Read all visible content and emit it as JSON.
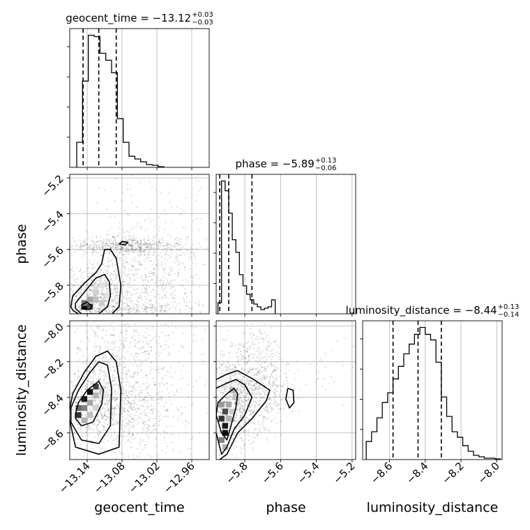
{
  "chart_data": {
    "type": "corner",
    "parameters": [
      {
        "name": "geocent_time",
        "axis_label": "geocent_time",
        "title": {
          "prefix": "geocent_time = ",
          "median": "−13.12",
          "upper": "+0.03",
          "lower": "−0.03"
        },
        "range": [
          -13.17,
          -12.93
        ],
        "ticks": [
          -13.14,
          -13.08,
          -13.02,
          -12.96
        ],
        "tick_labels": [
          "−13.14",
          "−13.08",
          "−13.02",
          "−12.96"
        ],
        "quantiles": [
          -13.147,
          -13.12,
          -13.09
        ],
        "hist": {
          "edges": [
            -13.158,
            -13.148,
            -13.138,
            -13.128,
            -13.118,
            -13.108,
            -13.098,
            -13.088,
            -13.078,
            -13.068,
            -13.058,
            -13.048,
            -13.038,
            -13.028,
            -13.018,
            -13.008
          ],
          "counts": [
            0.18,
            0.62,
            0.95,
            0.94,
            0.82,
            0.77,
            0.68,
            0.35,
            0.18,
            0.08,
            0.06,
            0.04,
            0.02,
            0.015,
            0.005
          ]
        }
      },
      {
        "name": "phase",
        "axis_label": "phase",
        "title": {
          "prefix": "phase = ",
          "median": "−5.89",
          "upper": "+0.13",
          "lower": "−0.06"
        },
        "range": [
          -5.96,
          -5.18
        ],
        "ticks": [
          -5.8,
          -5.6,
          -5.4,
          -5.2
        ],
        "tick_labels": [
          "−5.8",
          "−5.6",
          "−5.4",
          "−5.2"
        ],
        "quantiles": [
          -5.94,
          -5.89,
          -5.76
        ],
        "hist": {
          "edges": [
            -5.95,
            -5.93,
            -5.91,
            -5.89,
            -5.87,
            -5.85,
            -5.83,
            -5.81,
            -5.79,
            -5.77,
            -5.75,
            -5.73,
            -5.71,
            -5.69,
            -5.67,
            -5.65,
            -5.63
          ],
          "counts": [
            0.08,
            0.95,
            0.88,
            0.72,
            0.53,
            0.44,
            0.28,
            0.2,
            0.14,
            0.1,
            0.07,
            0.05,
            0.03,
            0.04,
            0.05,
            0.1
          ]
        }
      },
      {
        "name": "luminosity_distance",
        "axis_label": "luminosity_distance",
        "title": {
          "prefix": "luminosity_distance = ",
          "median": "−8.44",
          "upper": "+0.13",
          "lower": "−0.14"
        },
        "range": [
          -8.75,
          -7.97
        ],
        "ticks": [
          -8.6,
          -8.4,
          -8.2,
          -8.0
        ],
        "tick_labels": [
          "−8.6",
          "−8.4",
          "−8.2",
          "−8.0"
        ],
        "quantiles": [
          -8.58,
          -8.44,
          -8.31
        ],
        "hist": {
          "edges": [
            -8.73,
            -8.7,
            -8.67,
            -8.64,
            -8.61,
            -8.58,
            -8.55,
            -8.52,
            -8.49,
            -8.46,
            -8.43,
            -8.4,
            -8.37,
            -8.34,
            -8.31,
            -8.28,
            -8.25,
            -8.22,
            -8.19,
            -8.16,
            -8.13,
            -8.1,
            -8.07,
            -8.04,
            -8.01,
            -7.98
          ],
          "counts": [
            0.13,
            0.2,
            0.3,
            0.41,
            0.48,
            0.58,
            0.67,
            0.76,
            0.83,
            0.9,
            0.95,
            0.9,
            0.86,
            0.7,
            0.45,
            0.31,
            0.2,
            0.16,
            0.1,
            0.06,
            0.03,
            0.02,
            0.01,
            0.01,
            0.005
          ]
        }
      }
    ],
    "pairs": [
      {
        "x": "geocent_time",
        "y": "phase",
        "cells": [
          [
            -13.145,
            -5.92,
            0.95
          ],
          [
            -13.135,
            -5.92,
            0.7
          ],
          [
            -13.145,
            -5.9,
            0.55
          ],
          [
            -13.135,
            -5.88,
            0.35
          ],
          [
            -13.125,
            -5.88,
            0.25
          ],
          [
            -13.115,
            -5.9,
            0.2
          ],
          [
            -13.125,
            -5.84,
            0.18
          ],
          [
            -13.115,
            -5.8,
            0.12
          ],
          [
            -13.105,
            -5.86,
            0.12
          ]
        ],
        "contours": [
          [
            [
              -13.16,
              -5.93
            ],
            [
              -13.15,
              -5.96
            ],
            [
              -13.12,
              -5.96
            ],
            [
              -13.105,
              -5.92
            ],
            [
              -13.1,
              -5.86
            ],
            [
              -13.102,
              -5.78
            ],
            [
              -13.11,
              -5.74
            ],
            [
              -13.125,
              -5.76
            ],
            [
              -13.145,
              -5.84
            ],
            [
              -13.16,
              -5.9
            ],
            [
              -13.16,
              -5.93
            ]
          ],
          [
            [
              -13.165,
              -5.94
            ],
            [
              -13.15,
              -5.97
            ],
            [
              -13.1,
              -5.97
            ],
            [
              -13.085,
              -5.92
            ],
            [
              -13.082,
              -5.8
            ],
            [
              -13.09,
              -5.65
            ],
            [
              -13.1,
              -5.6
            ],
            [
              -13.11,
              -5.6
            ],
            [
              -13.115,
              -5.68
            ],
            [
              -13.125,
              -5.73
            ],
            [
              -13.145,
              -5.79
            ],
            [
              -13.165,
              -5.86
            ],
            [
              -13.168,
              -5.92
            ],
            [
              -13.165,
              -5.94
            ]
          ],
          [
            [
              -13.085,
              -5.57
            ],
            [
              -13.08,
              -5.555
            ],
            [
              -13.07,
              -5.56
            ],
            [
              -13.075,
              -5.575
            ],
            [
              -13.085,
              -5.57
            ]
          ],
          [
            [
              -13.15,
              -5.91
            ],
            [
              -13.145,
              -5.935
            ],
            [
              -13.135,
              -5.935
            ],
            [
              -13.132,
              -5.915
            ],
            [
              -13.14,
              -5.895
            ],
            [
              -13.15,
              -5.91
            ]
          ]
        ],
        "scatter": {
          "seed": 7,
          "blobs": [
            [
              -13.12,
              -5.85,
              0.03,
              0.08,
              650
            ],
            [
              -13.07,
              -5.58,
              0.05,
              0.025,
              500
            ],
            [
              -13.03,
              -5.72,
              0.05,
              0.13,
              500
            ],
            [
              -13.07,
              -5.93,
              0.07,
              0.02,
              300
            ],
            [
              -13.02,
              -5.4,
              0.06,
              0.17,
              90
            ]
          ]
        }
      },
      {
        "x": "geocent_time",
        "y": "luminosity_distance",
        "cells": [
          [
            -13.125,
            -8.34,
            0.75
          ],
          [
            -13.135,
            -8.37,
            0.95
          ],
          [
            -13.145,
            -8.41,
            0.9
          ],
          [
            -13.155,
            -8.46,
            0.6
          ],
          [
            -13.155,
            -8.5,
            0.8
          ],
          [
            -13.145,
            -8.46,
            0.5
          ],
          [
            -13.135,
            -8.43,
            0.35
          ],
          [
            -13.125,
            -8.39,
            0.3
          ],
          [
            -13.145,
            -8.53,
            0.3
          ],
          [
            -13.135,
            -8.5,
            0.25
          ],
          [
            -13.115,
            -8.36,
            0.2
          ],
          [
            -13.125,
            -8.46,
            0.18
          ]
        ],
        "contours": [
          [
            [
              -13.16,
              -8.52
            ],
            [
              -13.15,
              -8.56
            ],
            [
              -13.13,
              -8.54
            ],
            [
              -13.115,
              -8.44
            ],
            [
              -13.112,
              -8.36
            ],
            [
              -13.12,
              -8.31
            ],
            [
              -13.14,
              -8.36
            ],
            [
              -13.155,
              -8.43
            ],
            [
              -13.16,
              -8.49
            ],
            [
              -13.16,
              -8.52
            ]
          ],
          [
            [
              -13.168,
              -8.54
            ],
            [
              -13.15,
              -8.64
            ],
            [
              -13.12,
              -8.66
            ],
            [
              -13.1,
              -8.56
            ],
            [
              -13.098,
              -8.35
            ],
            [
              -13.105,
              -8.22
            ],
            [
              -13.12,
              -8.2
            ],
            [
              -13.135,
              -8.26
            ],
            [
              -13.155,
              -8.36
            ],
            [
              -13.168,
              -8.46
            ],
            [
              -13.168,
              -8.54
            ]
          ],
          [
            [
              -13.172,
              -8.5
            ],
            [
              -13.16,
              -8.68
            ],
            [
              -13.12,
              -8.72
            ],
            [
              -13.085,
              -8.68
            ],
            [
              -13.082,
              -8.36
            ],
            [
              -13.09,
              -8.2
            ],
            [
              -13.105,
              -8.14
            ],
            [
              -13.125,
              -8.17
            ],
            [
              -13.145,
              -8.26
            ],
            [
              -13.165,
              -8.38
            ],
            [
              -13.172,
              -8.5
            ]
          ]
        ],
        "scatter": {
          "seed": 11,
          "blobs": [
            [
              -13.12,
              -8.42,
              0.035,
              0.13,
              800
            ],
            [
              -13.05,
              -8.45,
              0.05,
              0.18,
              600
            ],
            [
              -13.09,
              -8.12,
              0.04,
              0.1,
              200
            ],
            [
              -13.02,
              -8.05,
              0.04,
              0.08,
              80
            ]
          ]
        }
      },
      {
        "x": "phase",
        "y": "luminosity_distance",
        "cells": [
          [
            -5.93,
            -8.44,
            0.4
          ],
          [
            -5.91,
            -8.48,
            0.7
          ],
          [
            -5.93,
            -8.52,
            0.8
          ],
          [
            -5.91,
            -8.56,
            0.9
          ],
          [
            -5.91,
            -8.6,
            0.95
          ],
          [
            -5.93,
            -8.64,
            0.5
          ],
          [
            -5.89,
            -8.44,
            0.35
          ],
          [
            -5.87,
            -8.36,
            0.3
          ],
          [
            -5.85,
            -8.4,
            0.25
          ],
          [
            -5.89,
            -8.52,
            0.3
          ],
          [
            -5.87,
            -8.48,
            0.2
          ],
          [
            -5.91,
            -8.68,
            0.3
          ]
        ],
        "contours": [
          [
            [
              -5.96,
              -8.5
            ],
            [
              -5.93,
              -8.6
            ],
            [
              -5.9,
              -8.64
            ],
            [
              -5.88,
              -8.57
            ],
            [
              -5.85,
              -8.46
            ],
            [
              -5.84,
              -8.38
            ],
            [
              -5.86,
              -8.35
            ],
            [
              -5.9,
              -8.38
            ],
            [
              -5.95,
              -8.43
            ],
            [
              -5.96,
              -8.5
            ]
          ],
          [
            [
              -5.96,
              -8.35
            ],
            [
              -5.9,
              -8.32
            ],
            [
              -5.85,
              -8.3
            ],
            [
              -5.8,
              -8.33
            ],
            [
              -5.76,
              -8.4
            ],
            [
              -5.8,
              -8.5
            ],
            [
              -5.86,
              -8.58
            ],
            [
              -5.9,
              -8.68
            ],
            [
              -5.93,
              -8.72
            ],
            [
              -5.96,
              -8.6
            ]
          ],
          [
            [
              -5.96,
              -8.3
            ],
            [
              -5.9,
              -8.27
            ],
            [
              -5.84,
              -8.25
            ],
            [
              -5.75,
              -8.3
            ],
            [
              -5.66,
              -8.36
            ],
            [
              -5.68,
              -8.42
            ],
            [
              -5.76,
              -8.52
            ],
            [
              -5.84,
              -8.6
            ],
            [
              -5.9,
              -8.72
            ],
            [
              -5.94,
              -8.75
            ]
          ],
          [
            [
              -5.56,
              -8.35
            ],
            [
              -5.53,
              -8.36
            ],
            [
              -5.525,
              -8.43
            ],
            [
              -5.55,
              -8.46
            ],
            [
              -5.57,
              -8.41
            ],
            [
              -5.56,
              -8.35
            ]
          ]
        ],
        "scatter": {
          "seed": 19,
          "blobs": [
            [
              -5.85,
              -8.42,
              0.07,
              0.13,
              900
            ],
            [
              -5.66,
              -8.36,
              0.05,
              0.1,
              250
            ],
            [
              -5.75,
              -8.15,
              0.07,
              0.1,
              200
            ],
            [
              -5.4,
              -8.25,
              0.1,
              0.1,
              40
            ]
          ]
        }
      }
    ]
  }
}
